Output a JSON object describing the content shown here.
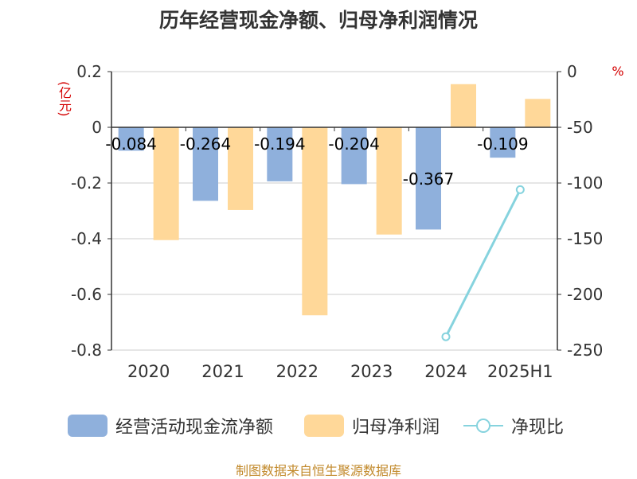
{
  "title": "历年经营现金净额、归母净利润情况",
  "source": "制图数据来自恒生聚源数据库",
  "colors": {
    "cash": "#8fb0dc",
    "profit": "#ffd899",
    "ratio": "#86d3de",
    "unit": "#d40000",
    "axis": "#333333",
    "grid": "#cccccc",
    "source": "#c28a2c"
  },
  "chart_data": {
    "type": "bar",
    "categories": [
      "2020",
      "2021",
      "2022",
      "2023",
      "2024",
      "2025H1"
    ],
    "series": [
      {
        "name": "经营活动现金流净额",
        "type": "bar",
        "axis": "left",
        "values": [
          -0.084,
          -0.264,
          -0.194,
          -0.204,
          -0.367,
          -0.109
        ]
      },
      {
        "name": "归母净利润",
        "type": "bar",
        "axis": "left",
        "values": [
          -0.405,
          -0.297,
          -0.675,
          -0.385,
          0.155,
          0.102
        ]
      },
      {
        "name": "净现比",
        "type": "line",
        "axis": "right",
        "values": [
          null,
          null,
          null,
          null,
          -238,
          -106
        ]
      }
    ],
    "data_labels": [
      "-0.084",
      "-0.264",
      "-0.194",
      "-0.204",
      "-0.367",
      "-0.109"
    ],
    "left_axis": {
      "label": "(亿元)",
      "min": -0.8,
      "max": 0.2,
      "ticks": [
        "0.2",
        "0",
        "-0.2",
        "-0.4",
        "-0.6",
        "-0.8"
      ]
    },
    "right_axis": {
      "label": "%",
      "min": -250,
      "max": 0,
      "ticks": [
        "0",
        "-50",
        "-100",
        "-150",
        "-200",
        "-250"
      ]
    },
    "grid": true,
    "legend_position": "bottom"
  }
}
